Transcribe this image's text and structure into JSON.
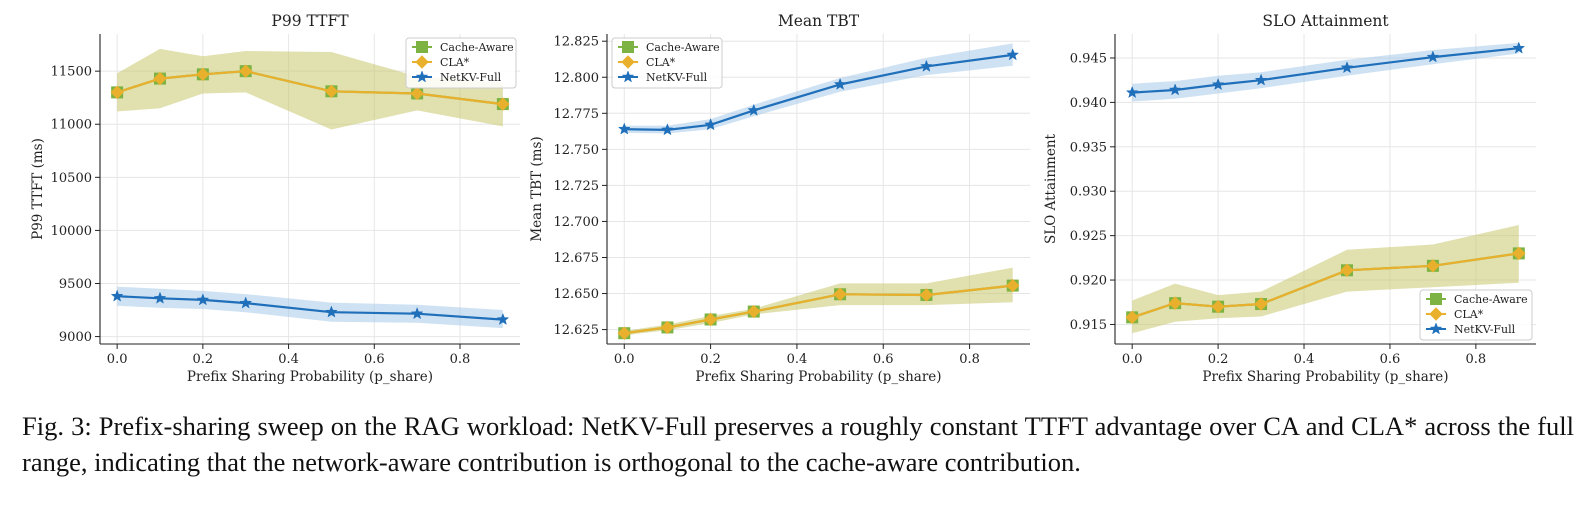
{
  "caption": "Fig. 3: Prefix-sharing sweep on the RAG workload: NetKV-Full preserves a roughly constant TTFT advantage over CA and CLA* across the full range, indicating that the network-aware contribution is orthogonal to the cache-aware contribution.",
  "colors": {
    "cache_aware": "#7cb342",
    "cla": "#e8b02c",
    "netkv": "#1f6fba",
    "cla_band": "#c9c66e",
    "netkv_band": "#9fc6e8"
  },
  "chart_data": [
    {
      "type": "line",
      "title": "P99 TTFT",
      "xlabel": "Prefix Sharing Probability (p_share)",
      "ylabel": "P99 TTFT (ms)",
      "x": [
        0.0,
        0.1,
        0.2,
        0.3,
        0.5,
        0.7,
        0.9
      ],
      "xlim": [
        -0.04,
        0.94
      ],
      "ylim": [
        8930,
        11850
      ],
      "xticks": [
        0.0,
        0.2,
        0.4,
        0.6,
        0.8
      ],
      "xtick_labels": [
        "0.0",
        "0.2",
        "0.4",
        "0.6",
        "0.8"
      ],
      "yticks": [
        9000,
        9500,
        10000,
        10500,
        11000,
        11500
      ],
      "ytick_labels": [
        "9000",
        "9500",
        "10000",
        "10500",
        "11000",
        "11500"
      ],
      "grid": true,
      "legend": "top-right",
      "series": [
        {
          "name": "Cache-Aware",
          "marker": "square",
          "values": [
            11300,
            11430,
            11470,
            11500,
            11310,
            11290,
            11190
          ],
          "band": null
        },
        {
          "name": "CLA*",
          "marker": "diamond",
          "values": [
            11300,
            11430,
            11470,
            11500,
            11310,
            11290,
            11190
          ],
          "band": {
            "lower": [
              11120,
              11150,
              11290,
              11300,
              10950,
              11130,
              10980
            ],
            "upper": [
              11480,
              11710,
              11640,
              11690,
              11680,
              11450,
              11390
            ]
          }
        },
        {
          "name": "NetKV-Full",
          "marker": "star",
          "values": [
            9380,
            9360,
            9345,
            9315,
            9230,
            9215,
            9160
          ],
          "band": {
            "lower": [
              9290,
              9270,
              9260,
              9230,
              9140,
              9130,
              9080
            ],
            "upper": [
              9470,
              9450,
              9430,
              9400,
              9320,
              9300,
              9250
            ]
          }
        }
      ]
    },
    {
      "type": "line",
      "title": "Mean TBT",
      "xlabel": "Prefix Sharing Probability (p_share)",
      "ylabel": "Mean TBT (ms)",
      "x": [
        0.0,
        0.1,
        0.2,
        0.3,
        0.5,
        0.7,
        0.9
      ],
      "xlim": [
        -0.04,
        0.94
      ],
      "ylim": [
        12.615,
        12.83
      ],
      "xticks": [
        0.0,
        0.2,
        0.4,
        0.6,
        0.8
      ],
      "xtick_labels": [
        "0.0",
        "0.2",
        "0.4",
        "0.6",
        "0.8"
      ],
      "yticks": [
        12.625,
        12.65,
        12.675,
        12.7,
        12.725,
        12.75,
        12.775,
        12.8,
        12.825
      ],
      "ytick_labels": [
        "12.625",
        "12.650",
        "12.675",
        "12.700",
        "12.725",
        "12.750",
        "12.775",
        "12.800",
        "12.825"
      ],
      "grid": true,
      "legend": "top-left",
      "series": [
        {
          "name": "Cache-Aware",
          "marker": "square",
          "values": [
            12.6225,
            12.6265,
            12.632,
            12.6375,
            12.6495,
            12.649,
            12.6555
          ],
          "band": null
        },
        {
          "name": "CLA*",
          "marker": "diamond",
          "values": [
            12.6225,
            12.6265,
            12.632,
            12.6375,
            12.6495,
            12.649,
            12.6555
          ],
          "band": {
            "lower": [
              12.621,
              12.6245,
              12.6295,
              12.6355,
              12.642,
              12.642,
              12.644
            ],
            "upper": [
              12.624,
              12.6285,
              12.6345,
              12.6395,
              12.657,
              12.657,
              12.668
            ]
          }
        },
        {
          "name": "NetKV-Full",
          "marker": "star",
          "values": [
            12.764,
            12.7635,
            12.767,
            12.777,
            12.795,
            12.8075,
            12.8155
          ],
          "band": {
            "lower": [
              12.7615,
              12.761,
              12.764,
              12.773,
              12.79,
              12.8015,
              12.808
            ],
            "upper": [
              12.7665,
              12.7665,
              12.771,
              12.781,
              12.7995,
              12.8135,
              12.8235
            ]
          }
        }
      ]
    },
    {
      "type": "line",
      "title": "SLO Attainment",
      "xlabel": "Prefix Sharing Probability (p_share)",
      "ylabel": "SLO Attainment",
      "x": [
        0.0,
        0.1,
        0.2,
        0.3,
        0.5,
        0.7,
        0.9
      ],
      "xlim": [
        -0.04,
        0.94
      ],
      "ylim": [
        0.9128,
        0.9477
      ],
      "xticks": [
        0.0,
        0.2,
        0.4,
        0.6,
        0.8
      ],
      "xtick_labels": [
        "0.0",
        "0.2",
        "0.4",
        "0.6",
        "0.8"
      ],
      "yticks": [
        0.915,
        0.92,
        0.925,
        0.93,
        0.935,
        0.94,
        0.945
      ],
      "ytick_labels": [
        "0.915",
        "0.920",
        "0.925",
        "0.930",
        "0.935",
        "0.940",
        "0.945"
      ],
      "grid": true,
      "legend": "bottom-right",
      "series": [
        {
          "name": "Cache-Aware",
          "marker": "square",
          "values": [
            0.9158,
            0.9174,
            0.917,
            0.9173,
            0.9211,
            0.9216,
            0.923
          ],
          "band": null
        },
        {
          "name": "CLA*",
          "marker": "diamond",
          "values": [
            0.9158,
            0.9174,
            0.917,
            0.9173,
            0.9211,
            0.9216,
            0.923
          ],
          "band": {
            "lower": [
              0.914,
              0.9153,
              0.9157,
              0.9159,
              0.9187,
              0.9192,
              0.9197
            ],
            "upper": [
              0.9177,
              0.9196,
              0.9183,
              0.9187,
              0.9234,
              0.924,
              0.9262
            ]
          }
        },
        {
          "name": "NetKV-Full",
          "marker": "star",
          "values": [
            0.9411,
            0.9414,
            0.942,
            0.9425,
            0.9439,
            0.9451,
            0.9461
          ],
          "band": {
            "lower": [
              0.9401,
              0.9404,
              0.941,
              0.9416,
              0.943,
              0.9443,
              0.9455
            ],
            "upper": [
              0.9421,
              0.9424,
              0.943,
              0.9434,
              0.9448,
              0.9459,
              0.9467
            ]
          }
        }
      ]
    }
  ]
}
